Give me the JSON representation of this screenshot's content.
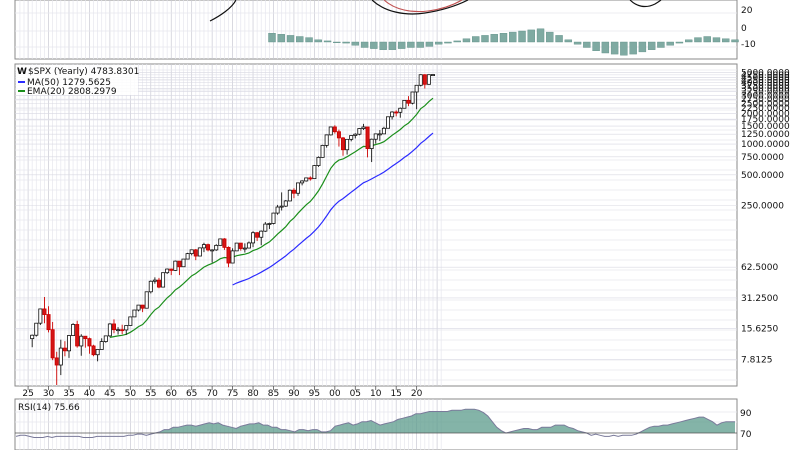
{
  "chart_data": [
    {
      "type": "line",
      "panel": "macd",
      "yticks": [
        "20",
        "0",
        "-10"
      ],
      "histogram": [
        8,
        7,
        6,
        5,
        4,
        2,
        1,
        0,
        -1,
        -3,
        -5,
        -6,
        -7,
        -7,
        -6,
        -5,
        -5,
        -4,
        -2,
        -1,
        1,
        3,
        5,
        6,
        7,
        8,
        9,
        10,
        11,
        12,
        9,
        6,
        2,
        -2,
        -5,
        -8,
        -10,
        -11,
        -12,
        -11,
        -9,
        -7,
        -5,
        -3,
        -1,
        2,
        4,
        5,
        4,
        3,
        2
      ]
    },
    {
      "type": "candlestick",
      "panel": "price",
      "title": "$SPX (Yearly) 4783.8301",
      "legend": [
        {
          "name": "MA(50) 1279.5625",
          "color": "#2b2bff"
        },
        {
          "name": "EMA(20) 2808.2979",
          "color": "#1b8f1b"
        }
      ],
      "log_scale": true,
      "grid": true,
      "ylim": [
        4.5,
        5800
      ],
      "yticks": [
        7.8125,
        15.625,
        31.25,
        62.5,
        250,
        500,
        750,
        1000,
        1250,
        1500,
        1750,
        2000,
        2250,
        2500,
        2750,
        3000,
        3250,
        3500,
        3750,
        4000,
        4250,
        4500,
        4750,
        5000
      ],
      "ytick_labels": [
        "7.8125",
        "15.6250",
        "31.2500",
        "62.5000",
        "250.0000",
        "500.0000",
        "750.0000",
        "1000.0000",
        "1250.0000",
        "1500.0000",
        "1750.0000",
        "2000.0000",
        "2250.0000",
        "2500.0000",
        "2750.0000",
        "3000.0000",
        "3250.0000",
        "3500.0000",
        "3750.0000",
        "4000.0000",
        "4250.0000",
        "4500.0000",
        "4750.0000",
        "5000.0000"
      ],
      "xticks": [
        "25",
        "30",
        "35",
        "40",
        "45",
        "50",
        "55",
        "60",
        "65",
        "70",
        "75",
        "80",
        "85",
        "90",
        "95",
        "00",
        "05",
        "10",
        "15",
        "20"
      ],
      "candles": [
        {
          "x": 1926,
          "o": 12.5,
          "h": 13.7,
          "l": 10.3,
          "c": 13.5
        },
        {
          "x": 1927,
          "o": 13.5,
          "h": 17.7,
          "l": 13.1,
          "c": 17.7
        },
        {
          "x": 1928,
          "o": 17.7,
          "h": 24.4,
          "l": 17.0,
          "c": 24.4
        },
        {
          "x": 1929,
          "o": 24.4,
          "h": 31.9,
          "l": 17.7,
          "c": 21.5
        },
        {
          "x": 1930,
          "o": 21.5,
          "h": 25.9,
          "l": 14.4,
          "c": 15.3
        },
        {
          "x": 1931,
          "o": 15.3,
          "h": 18.2,
          "l": 7.7,
          "c": 8.1
        },
        {
          "x": 1932,
          "o": 8.1,
          "h": 9.3,
          "l": 4.4,
          "c": 6.9
        },
        {
          "x": 1933,
          "o": 6.9,
          "h": 12.2,
          "l": 5.5,
          "c": 10.1
        },
        {
          "x": 1934,
          "o": 10.1,
          "h": 11.8,
          "l": 8.4,
          "c": 9.5
        },
        {
          "x": 1935,
          "o": 9.5,
          "h": 13.5,
          "l": 8.1,
          "c": 13.4
        },
        {
          "x": 1936,
          "o": 13.4,
          "h": 17.7,
          "l": 13.4,
          "c": 17.2
        },
        {
          "x": 1937,
          "o": 17.2,
          "h": 18.7,
          "l": 10.2,
          "c": 10.6
        },
        {
          "x": 1938,
          "o": 10.6,
          "h": 13.8,
          "l": 8.5,
          "c": 13.2
        },
        {
          "x": 1939,
          "o": 13.2,
          "h": 13.2,
          "l": 10.2,
          "c": 12.5
        },
        {
          "x": 1940,
          "o": 12.5,
          "h": 12.8,
          "l": 8.9,
          "c": 10.6
        },
        {
          "x": 1941,
          "o": 10.6,
          "h": 10.9,
          "l": 8.4,
          "c": 8.7
        },
        {
          "x": 1942,
          "o": 8.7,
          "h": 9.8,
          "l": 7.5,
          "c": 9.8
        },
        {
          "x": 1943,
          "o": 9.8,
          "h": 12.6,
          "l": 9.8,
          "c": 11.7
        },
        {
          "x": 1944,
          "o": 11.7,
          "h": 13.3,
          "l": 11.4,
          "c": 13.3
        },
        {
          "x": 1945,
          "o": 13.3,
          "h": 17.7,
          "l": 13.0,
          "c": 17.4
        },
        {
          "x": 1946,
          "o": 17.4,
          "h": 19.3,
          "l": 14.1,
          "c": 15.3
        },
        {
          "x": 1947,
          "o": 15.3,
          "h": 16.2,
          "l": 13.7,
          "c": 15.3
        },
        {
          "x": 1948,
          "o": 15.3,
          "h": 17.1,
          "l": 13.8,
          "c": 15.2
        },
        {
          "x": 1949,
          "o": 15.2,
          "h": 16.8,
          "l": 13.6,
          "c": 16.8
        },
        {
          "x": 1950,
          "o": 16.8,
          "h": 20.4,
          "l": 16.7,
          "c": 20.4
        },
        {
          "x": 1951,
          "o": 20.4,
          "h": 23.9,
          "l": 20.7,
          "c": 23.8
        },
        {
          "x": 1952,
          "o": 23.8,
          "h": 26.6,
          "l": 23.1,
          "c": 26.6
        },
        {
          "x": 1953,
          "o": 26.6,
          "h": 26.7,
          "l": 22.7,
          "c": 24.8
        },
        {
          "x": 1954,
          "o": 24.8,
          "h": 35.9,
          "l": 24.8,
          "c": 35.9
        },
        {
          "x": 1955,
          "o": 35.9,
          "h": 46.4,
          "l": 34.6,
          "c": 45.5
        },
        {
          "x": 1956,
          "o": 45.5,
          "h": 49.7,
          "l": 43.1,
          "c": 46.7
        },
        {
          "x": 1957,
          "o": 46.7,
          "h": 49.1,
          "l": 38.9,
          "c": 39.9
        },
        {
          "x": 1958,
          "o": 39.9,
          "h": 55.2,
          "l": 40.3,
          "c": 55.2
        },
        {
          "x": 1959,
          "o": 55.2,
          "h": 60.7,
          "l": 53.6,
          "c": 59.9
        },
        {
          "x": 1960,
          "o": 59.9,
          "h": 60.4,
          "l": 52.3,
          "c": 58.1
        },
        {
          "x": 1961,
          "o": 58.1,
          "h": 72.6,
          "l": 57.6,
          "c": 71.6
        },
        {
          "x": 1962,
          "o": 71.6,
          "h": 71.1,
          "l": 52.3,
          "c": 63.1
        },
        {
          "x": 1963,
          "o": 63.1,
          "h": 75.0,
          "l": 62.7,
          "c": 75.0
        },
        {
          "x": 1964,
          "o": 75.0,
          "h": 86.3,
          "l": 75.4,
          "c": 84.8
        },
        {
          "x": 1965,
          "o": 84.8,
          "h": 92.6,
          "l": 81.6,
          "c": 92.4
        },
        {
          "x": 1966,
          "o": 92.4,
          "h": 94.1,
          "l": 73.2,
          "c": 80.3
        },
        {
          "x": 1967,
          "o": 80.3,
          "h": 97.6,
          "l": 80.4,
          "c": 96.5
        },
        {
          "x": 1968,
          "o": 96.5,
          "h": 108.4,
          "l": 87.7,
          "c": 103.9
        },
        {
          "x": 1969,
          "o": 103.9,
          "h": 106.2,
          "l": 89.2,
          "c": 92.1
        },
        {
          "x": 1970,
          "o": 92.1,
          "h": 93.5,
          "l": 69.3,
          "c": 92.2
        },
        {
          "x": 1971,
          "o": 92.2,
          "h": 104.8,
          "l": 90.2,
          "c": 102.1
        },
        {
          "x": 1972,
          "o": 102.1,
          "h": 119.1,
          "l": 101.7,
          "c": 118.1
        },
        {
          "x": 1973,
          "o": 118.1,
          "h": 120.2,
          "l": 92.2,
          "c": 97.6
        },
        {
          "x": 1974,
          "o": 97.6,
          "h": 99.8,
          "l": 62.3,
          "c": 68.6
        },
        {
          "x": 1975,
          "o": 68.6,
          "h": 95.6,
          "l": 70.0,
          "c": 90.2
        },
        {
          "x": 1976,
          "o": 90.2,
          "h": 107.8,
          "l": 90.9,
          "c": 107.5
        },
        {
          "x": 1977,
          "o": 107.5,
          "h": 107.0,
          "l": 90.7,
          "c": 95.1
        },
        {
          "x": 1978,
          "o": 95.1,
          "h": 106.9,
          "l": 86.9,
          "c": 96.1
        },
        {
          "x": 1979,
          "o": 96.1,
          "h": 111.3,
          "l": 96.1,
          "c": 107.9
        },
        {
          "x": 1980,
          "o": 107.9,
          "h": 140.5,
          "l": 98.2,
          "c": 135.8
        },
        {
          "x": 1981,
          "o": 135.8,
          "h": 138.1,
          "l": 112.8,
          "c": 122.6
        },
        {
          "x": 1982,
          "o": 122.6,
          "h": 143.0,
          "l": 102.4,
          "c": 140.6
        },
        {
          "x": 1983,
          "o": 140.6,
          "h": 172.7,
          "l": 138.3,
          "c": 164.9
        },
        {
          "x": 1984,
          "o": 164.9,
          "h": 170.4,
          "l": 147.8,
          "c": 167.2
        },
        {
          "x": 1985,
          "o": 167.2,
          "h": 212.0,
          "l": 163.7,
          "c": 211.3
        },
        {
          "x": 1986,
          "o": 211.3,
          "h": 254.0,
          "l": 203.5,
          "c": 242.2
        },
        {
          "x": 1987,
          "o": 242.2,
          "h": 336.8,
          "l": 223.9,
          "c": 247.1
        },
        {
          "x": 1988,
          "o": 247.1,
          "h": 283.7,
          "l": 242.6,
          "c": 277.7
        },
        {
          "x": 1989,
          "o": 277.7,
          "h": 359.8,
          "l": 275.3,
          "c": 353.4
        },
        {
          "x": 1990,
          "o": 353.4,
          "h": 369.8,
          "l": 295.5,
          "c": 330.2
        },
        {
          "x": 1991,
          "o": 330.2,
          "h": 417.1,
          "l": 311.5,
          "c": 417.1
        },
        {
          "x": 1992,
          "o": 417.1,
          "h": 442.7,
          "l": 394.5,
          "c": 435.7
        },
        {
          "x": 1993,
          "o": 435.7,
          "h": 470.9,
          "l": 429.0,
          "c": 466.5
        },
        {
          "x": 1994,
          "o": 466.5,
          "h": 482.9,
          "l": 438.9,
          "c": 459.3
        },
        {
          "x": 1995,
          "o": 459.3,
          "h": 621.7,
          "l": 459.1,
          "c": 615.9
        },
        {
          "x": 1996,
          "o": 615.9,
          "h": 757.0,
          "l": 598.5,
          "c": 740.7
        },
        {
          "x": 1997,
          "o": 740.7,
          "h": 983.8,
          "l": 737.0,
          "c": 970.4
        },
        {
          "x": 1998,
          "o": 970.4,
          "h": 1241.8,
          "l": 923.3,
          "c": 1229.2
        },
        {
          "x": 1999,
          "o": 1229.2,
          "h": 1469.3,
          "l": 1212.2,
          "c": 1469.3
        },
        {
          "x": 2000,
          "o": 1469.3,
          "h": 1527.5,
          "l": 1264.7,
          "c": 1320.3
        },
        {
          "x": 2001,
          "o": 1320.3,
          "h": 1383.4,
          "l": 944.8,
          "c": 1148.1
        },
        {
          "x": 2002,
          "o": 1148.1,
          "h": 1172.5,
          "l": 768.6,
          "c": 879.8
        },
        {
          "x": 2003,
          "o": 879.8,
          "h": 1112.0,
          "l": 788.9,
          "c": 1111.9
        },
        {
          "x": 2004,
          "o": 1111.9,
          "h": 1217.3,
          "l": 1063.2,
          "c": 1211.9
        },
        {
          "x": 2005,
          "o": 1211.9,
          "h": 1275.8,
          "l": 1136.2,
          "c": 1248.3
        },
        {
          "x": 2006,
          "o": 1248.3,
          "h": 1431.8,
          "l": 1219.3,
          "c": 1418.3
        },
        {
          "x": 2007,
          "o": 1418.3,
          "h": 1576.1,
          "l": 1374.1,
          "c": 1468.4
        },
        {
          "x": 2008,
          "o": 1468.4,
          "h": 1471.8,
          "l": 741.0,
          "c": 903.3
        },
        {
          "x": 2009,
          "o": 903.3,
          "h": 1130.4,
          "l": 666.8,
          "c": 1115.1
        },
        {
          "x": 2010,
          "o": 1115.1,
          "h": 1262.6,
          "l": 1010.9,
          "c": 1257.6
        },
        {
          "x": 2011,
          "o": 1257.6,
          "h": 1370.6,
          "l": 1074.8,
          "c": 1257.6
        },
        {
          "x": 2012,
          "o": 1257.6,
          "h": 1474.5,
          "l": 1258.9,
          "c": 1426.2
        },
        {
          "x": 2013,
          "o": 1426.2,
          "h": 1849.4,
          "l": 1426.2,
          "c": 1848.4
        },
        {
          "x": 2014,
          "o": 1848.4,
          "h": 2093.6,
          "l": 1737.9,
          "c": 2058.9
        },
        {
          "x": 2015,
          "o": 2058.9,
          "h": 2134.7,
          "l": 1867.0,
          "c": 2043.9
        },
        {
          "x": 2016,
          "o": 2043.9,
          "h": 2277.5,
          "l": 1810.1,
          "c": 2238.8
        },
        {
          "x": 2017,
          "o": 2238.8,
          "h": 2694.9,
          "l": 2245.1,
          "c": 2673.6
        },
        {
          "x": 2018,
          "o": 2673.6,
          "h": 2940.9,
          "l": 2346.6,
          "c": 2506.9
        },
        {
          "x": 2019,
          "o": 2506.9,
          "h": 3247.9,
          "l": 2443.9,
          "c": 3230.8
        },
        {
          "x": 2020,
          "o": 3230.8,
          "h": 3760.2,
          "l": 2191.9,
          "c": 3756.1
        },
        {
          "x": 2021,
          "o": 3756.1,
          "h": 4808.9,
          "l": 3662.7,
          "c": 4766.2
        },
        {
          "x": 2022,
          "o": 4766.2,
          "h": 4818.6,
          "l": 3491.6,
          "c": 3839.5
        },
        {
          "x": 2023,
          "o": 3839.5,
          "h": 4793.3,
          "l": 3808.9,
          "c": 4769.8
        },
        {
          "x": 2024,
          "o": 4769.8,
          "h": 4802.4,
          "l": 4682.1,
          "c": 4783.8
        }
      ]
    },
    {
      "type": "area",
      "panel": "rsi",
      "title": "RSI(14) 75.66",
      "yticks": [
        "90",
        "70"
      ],
      "ylim": [
        50,
        95
      ],
      "values": [
        62,
        63,
        63,
        62,
        61,
        61,
        61,
        62,
        61,
        62,
        62,
        62,
        62,
        62,
        62,
        61,
        61,
        61,
        62,
        62,
        62,
        62,
        62,
        62,
        62,
        63,
        63,
        64,
        64,
        63,
        64,
        65,
        66,
        68,
        68,
        70,
        70,
        71,
        72,
        72,
        71,
        72,
        73,
        74,
        73,
        74,
        72,
        71,
        70,
        69,
        71,
        72,
        73,
        73,
        74,
        72,
        72,
        70,
        70,
        68,
        68,
        67,
        66,
        68,
        68,
        67,
        68,
        68,
        66,
        66,
        67,
        71,
        72,
        73,
        74,
        72,
        73,
        75,
        75,
        76,
        74,
        72,
        73,
        74,
        75,
        77,
        78,
        79,
        80,
        82,
        82,
        83,
        84,
        84,
        84,
        84,
        84,
        85,
        85,
        85,
        86,
        86,
        86,
        85,
        83,
        80,
        75,
        70,
        67,
        65,
        66,
        67,
        68,
        69,
        69,
        68,
        68,
        70,
        70,
        70,
        72,
        72,
        72,
        70,
        69,
        67,
        66,
        65,
        63,
        64,
        63,
        62,
        62,
        63,
        62,
        63,
        63,
        63,
        64,
        66,
        68,
        70,
        71,
        71,
        72,
        72,
        73,
        74,
        75,
        76,
        77,
        78,
        79,
        79,
        77,
        75,
        72,
        74,
        75,
        75,
        75
      ]
    }
  ]
}
